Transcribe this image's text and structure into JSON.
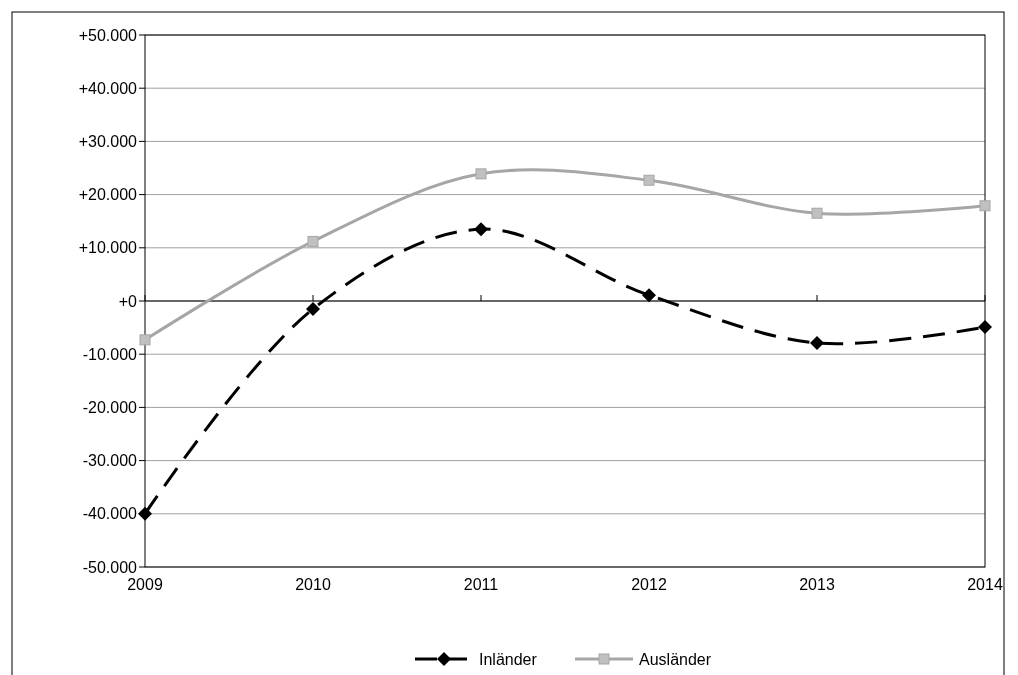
{
  "chart_data": {
    "type": "line",
    "x": [
      2009,
      2010,
      2011,
      2012,
      2013,
      2014
    ],
    "xlim": [
      2009,
      2014
    ],
    "xticks": [
      2009,
      2010,
      2011,
      2012,
      2013,
      2014
    ],
    "ylim": [
      -50000,
      50000
    ],
    "yticks": [
      {
        "value": -50000,
        "label": "-50.000"
      },
      {
        "value": -40000,
        "label": "-40.000"
      },
      {
        "value": -30000,
        "label": "-30.000"
      },
      {
        "value": -20000,
        "label": "-20.000"
      },
      {
        "value": -10000,
        "label": "-10.000"
      },
      {
        "value": 0,
        "label": "+0"
      },
      {
        "value": 10000,
        "label": "+10.000"
      },
      {
        "value": 20000,
        "label": "+20.000"
      },
      {
        "value": 30000,
        "label": "+30.000"
      },
      {
        "value": 40000,
        "label": "+40.000"
      },
      {
        "value": 50000,
        "label": "+50.000"
      }
    ],
    "grid": "y",
    "legend": "bottom",
    "series": [
      {
        "name": "Inländer",
        "color": "#000000",
        "marker": "diamond",
        "line_style": "dashed",
        "values": [
          -40000,
          -1500,
          13500,
          1100,
          -7900,
          -4900
        ]
      },
      {
        "name": "Ausländer",
        "color": "#a6a6a6",
        "marker": "square",
        "line_style": "solid",
        "values": [
          -7300,
          11200,
          23900,
          22700,
          16500,
          17900
        ]
      }
    ]
  }
}
